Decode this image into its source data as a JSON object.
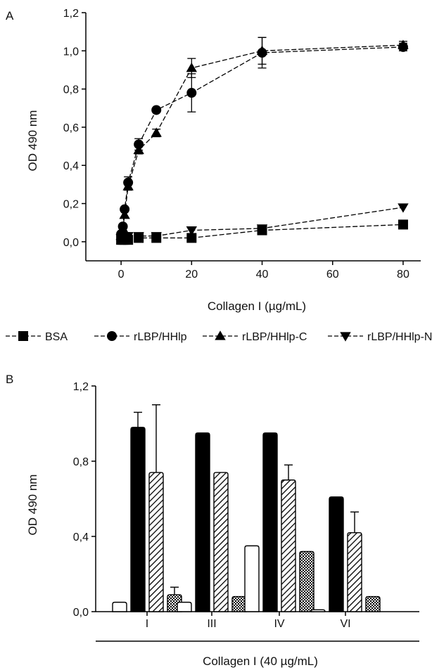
{
  "chart_data": [
    {
      "panel_label": "A",
      "type": "line",
      "xlabel": "Collagen I (µg/mL)",
      "ylabel": "OD 490 nm",
      "xlim": [
        -10,
        85
      ],
      "ylim": [
        -0.1,
        1.2
      ],
      "x_ticks": [
        0,
        20,
        40,
        60,
        80
      ],
      "y_ticks": [
        0.0,
        0.2,
        0.4,
        0.6,
        0.8,
        1.0,
        1.2
      ],
      "x_tick_labels": [
        "0",
        "20",
        "40",
        "60",
        "80"
      ],
      "y_tick_labels": [
        "0,0",
        "0,2",
        "0,4",
        "0,6",
        "0,8",
        "1,0",
        "1,2"
      ],
      "legend_position": "below",
      "series": [
        {
          "name": "BSA",
          "marker": "square",
          "x": [
            0,
            0.5,
            1,
            2,
            5,
            10,
            20,
            40,
            80
          ],
          "y": [
            0.01,
            0.01,
            0.01,
            0.01,
            0.02,
            0.02,
            0.02,
            0.06,
            0.09
          ],
          "err": [
            0,
            0,
            0,
            0,
            0,
            0,
            0,
            0,
            0
          ]
        },
        {
          "name": "rLBP/HHlp",
          "marker": "circle",
          "x": [
            0,
            0.5,
            1,
            2,
            5,
            10,
            20,
            40,
            80
          ],
          "y": [
            0.04,
            0.08,
            0.17,
            0.31,
            0.51,
            0.69,
            0.78,
            0.99,
            1.02
          ],
          "err": [
            0,
            0,
            0,
            0.03,
            0.03,
            0,
            0.1,
            0.08,
            0.02
          ]
        },
        {
          "name": "rLBP/HHlp-C",
          "marker": "triangle-up",
          "x": [
            0,
            0.5,
            1,
            2,
            5,
            10,
            20,
            40,
            80
          ],
          "y": [
            0.03,
            0.07,
            0.14,
            0.29,
            0.48,
            0.57,
            0.91,
            1.0,
            1.03
          ],
          "err": [
            0,
            0,
            0,
            0.02,
            0.02,
            0.02,
            0.05,
            0.07,
            0.02
          ]
        },
        {
          "name": "rLBP/HHlp-N",
          "marker": "triangle-down",
          "x": [
            0,
            0.5,
            1,
            2,
            5,
            10,
            20,
            40,
            80
          ],
          "y": [
            0.02,
            0.03,
            0.03,
            0.03,
            0.03,
            0.03,
            0.06,
            0.07,
            0.18
          ],
          "err": [
            0,
            0,
            0,
            0,
            0,
            0,
            0,
            0,
            0
          ]
        }
      ]
    },
    {
      "panel_label": "B",
      "type": "bar",
      "categories": [
        "I",
        "III",
        "IV",
        "VI"
      ],
      "xlabel": "Collagen I (40 µg/mL)",
      "ylabel": "OD 490 nm",
      "ylim": [
        0,
        1.2
      ],
      "y_ticks": [
        0.0,
        0.4,
        0.8,
        1.2
      ],
      "y_tick_labels": [
        "0,0",
        "0,4",
        "0,8",
        "1,2"
      ],
      "series": [
        {
          "fill": "white",
          "values": [
            0.05,
            0.05,
            0.35,
            0.01
          ],
          "err": [
            0,
            0,
            0,
            0
          ]
        },
        {
          "fill": "black",
          "values": [
            0.98,
            0.95,
            0.95,
            0.61
          ],
          "err": [
            0.08,
            0,
            0,
            0
          ]
        },
        {
          "fill": "hatched",
          "values": [
            0.74,
            0.74,
            0.7,
            0.42
          ],
          "err": [
            0.36,
            0,
            0.08,
            0.11
          ]
        },
        {
          "fill": "checkered",
          "values": [
            0.09,
            0.08,
            0.32,
            0.08
          ],
          "err": [
            0.04,
            0,
            0,
            0
          ]
        }
      ]
    }
  ]
}
